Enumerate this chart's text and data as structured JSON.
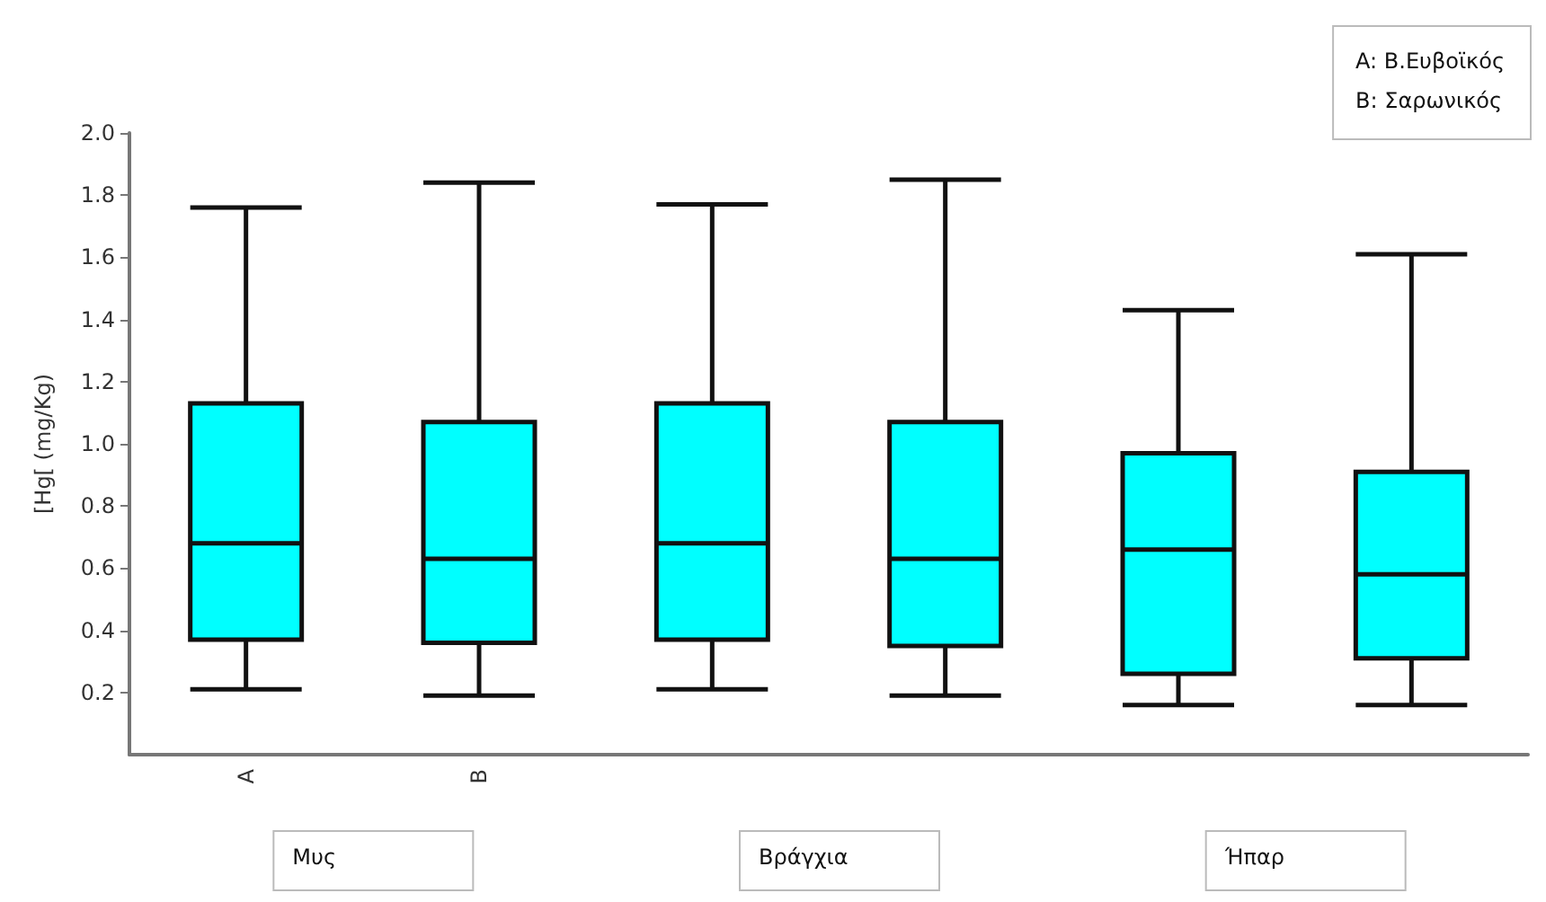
{
  "chart_data": {
    "type": "box",
    "ylabel": "[Hg[ (mg/Kg)",
    "categories": [
      "A",
      "B",
      null,
      null,
      null,
      null
    ],
    "color": "#00ffff",
    "boxes": [
      {
        "low": 0.21,
        "q1": 0.37,
        "median": 0.68,
        "q3": 1.13,
        "high": 1.76
      },
      {
        "low": 0.19,
        "q1": 0.36,
        "median": 0.63,
        "q3": 1.07,
        "high": 1.84
      },
      {
        "low": 0.21,
        "q1": 0.37,
        "median": 0.68,
        "q3": 1.13,
        "high": 1.77
      },
      {
        "low": 0.19,
        "q1": 0.35,
        "median": 0.63,
        "q3": 1.07,
        "high": 1.85
      },
      {
        "low": 0.16,
        "q1": 0.26,
        "median": 0.66,
        "q3": 0.97,
        "high": 1.43
      },
      {
        "low": 0.16,
        "q1": 0.31,
        "median": 0.58,
        "q3": 0.91,
        "high": 1.61
      }
    ],
    "ylim": [
      0,
      2
    ],
    "yticks": [
      0.2,
      0.4,
      0.6,
      0.8,
      {
        "value": 1,
        "label": "1.0"
      },
      1.2,
      1.4,
      1.6,
      1.8,
      {
        "value": 2,
        "label": "2.0"
      }
    ],
    "grid": false,
    "annotations": [
      "Μυς",
      "Βράγχια",
      "Ήπαρ",
      "A: Β.Ευβοϊκός",
      "B: Σαρωνικός"
    ]
  }
}
